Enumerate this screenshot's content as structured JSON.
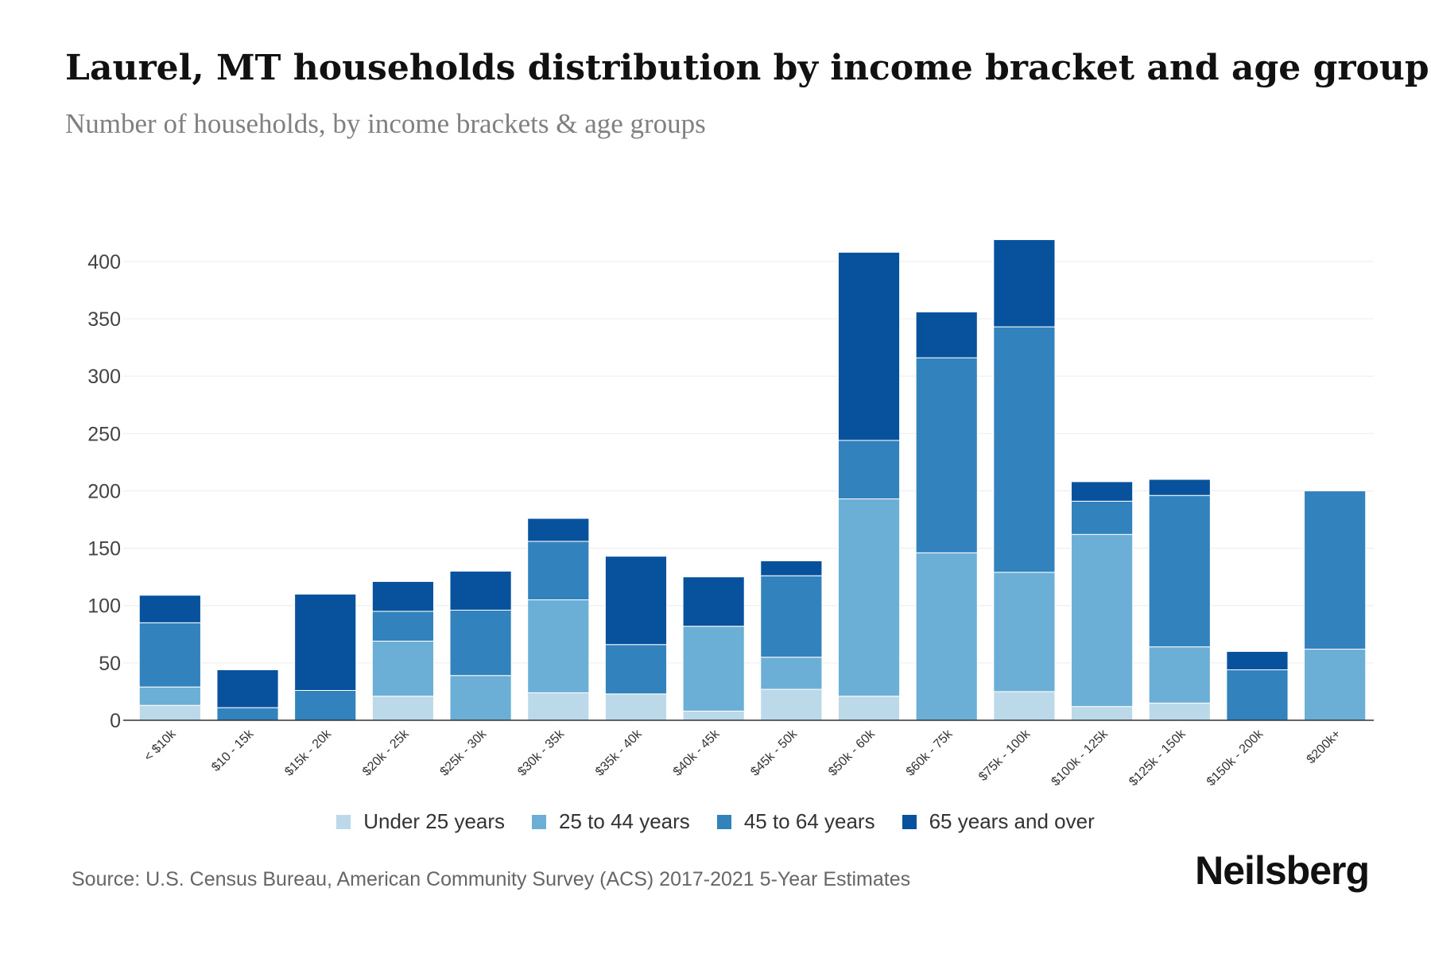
{
  "header": {
    "title": "Laurel, MT households distribution by income bracket and age group",
    "subtitle": "Number of households, by income brackets & age groups"
  },
  "footer": {
    "source": "Source: U.S. Census Bureau, American Community Survey (ACS) 2017-2021 5-Year Estimates",
    "brand": "Neilsberg"
  },
  "chart_data": {
    "type": "bar",
    "stacked": true,
    "title": "Laurel, MT households distribution by income bracket and age group",
    "xlabel": "",
    "ylabel": "",
    "ylim": [
      0,
      420
    ],
    "yticks": [
      0,
      50,
      100,
      150,
      200,
      250,
      300,
      350,
      400
    ],
    "legend_position": "bottom",
    "categories": [
      "< $10k",
      "$10 - 15k",
      "$15k - 20k",
      "$20k - 25k",
      "$25k - 30k",
      "$30k - 35k",
      "$35k - 40k",
      "$40k - 45k",
      "$45k - 50k",
      "$50k - 60k",
      "$60k - 75k",
      "$75k - 100k",
      "$100k - 125k",
      "$125k - 150k",
      "$150k - 200k",
      "$200k+"
    ],
    "series": [
      {
        "name": "Under 25 years",
        "color": "#bcd9ea",
        "values": [
          13,
          0,
          0,
          21,
          0,
          24,
          23,
          8,
          27,
          21,
          0,
          25,
          12,
          15,
          0,
          0
        ]
      },
      {
        "name": "25 to 44 years",
        "color": "#6baed6",
        "values": [
          16,
          0,
          0,
          48,
          39,
          81,
          0,
          74,
          28,
          172,
          146,
          104,
          150,
          49,
          0,
          62
        ]
      },
      {
        "name": "45 to 64 years",
        "color": "#3182bd",
        "values": [
          56,
          11,
          26,
          26,
          57,
          51,
          43,
          0,
          71,
          51,
          170,
          214,
          29,
          132,
          44,
          138
        ]
      },
      {
        "name": "65 years and over",
        "color": "#08519c",
        "values": [
          24,
          33,
          84,
          26,
          34,
          20,
          77,
          43,
          13,
          164,
          40,
          76,
          17,
          14,
          16,
          0
        ]
      }
    ]
  }
}
